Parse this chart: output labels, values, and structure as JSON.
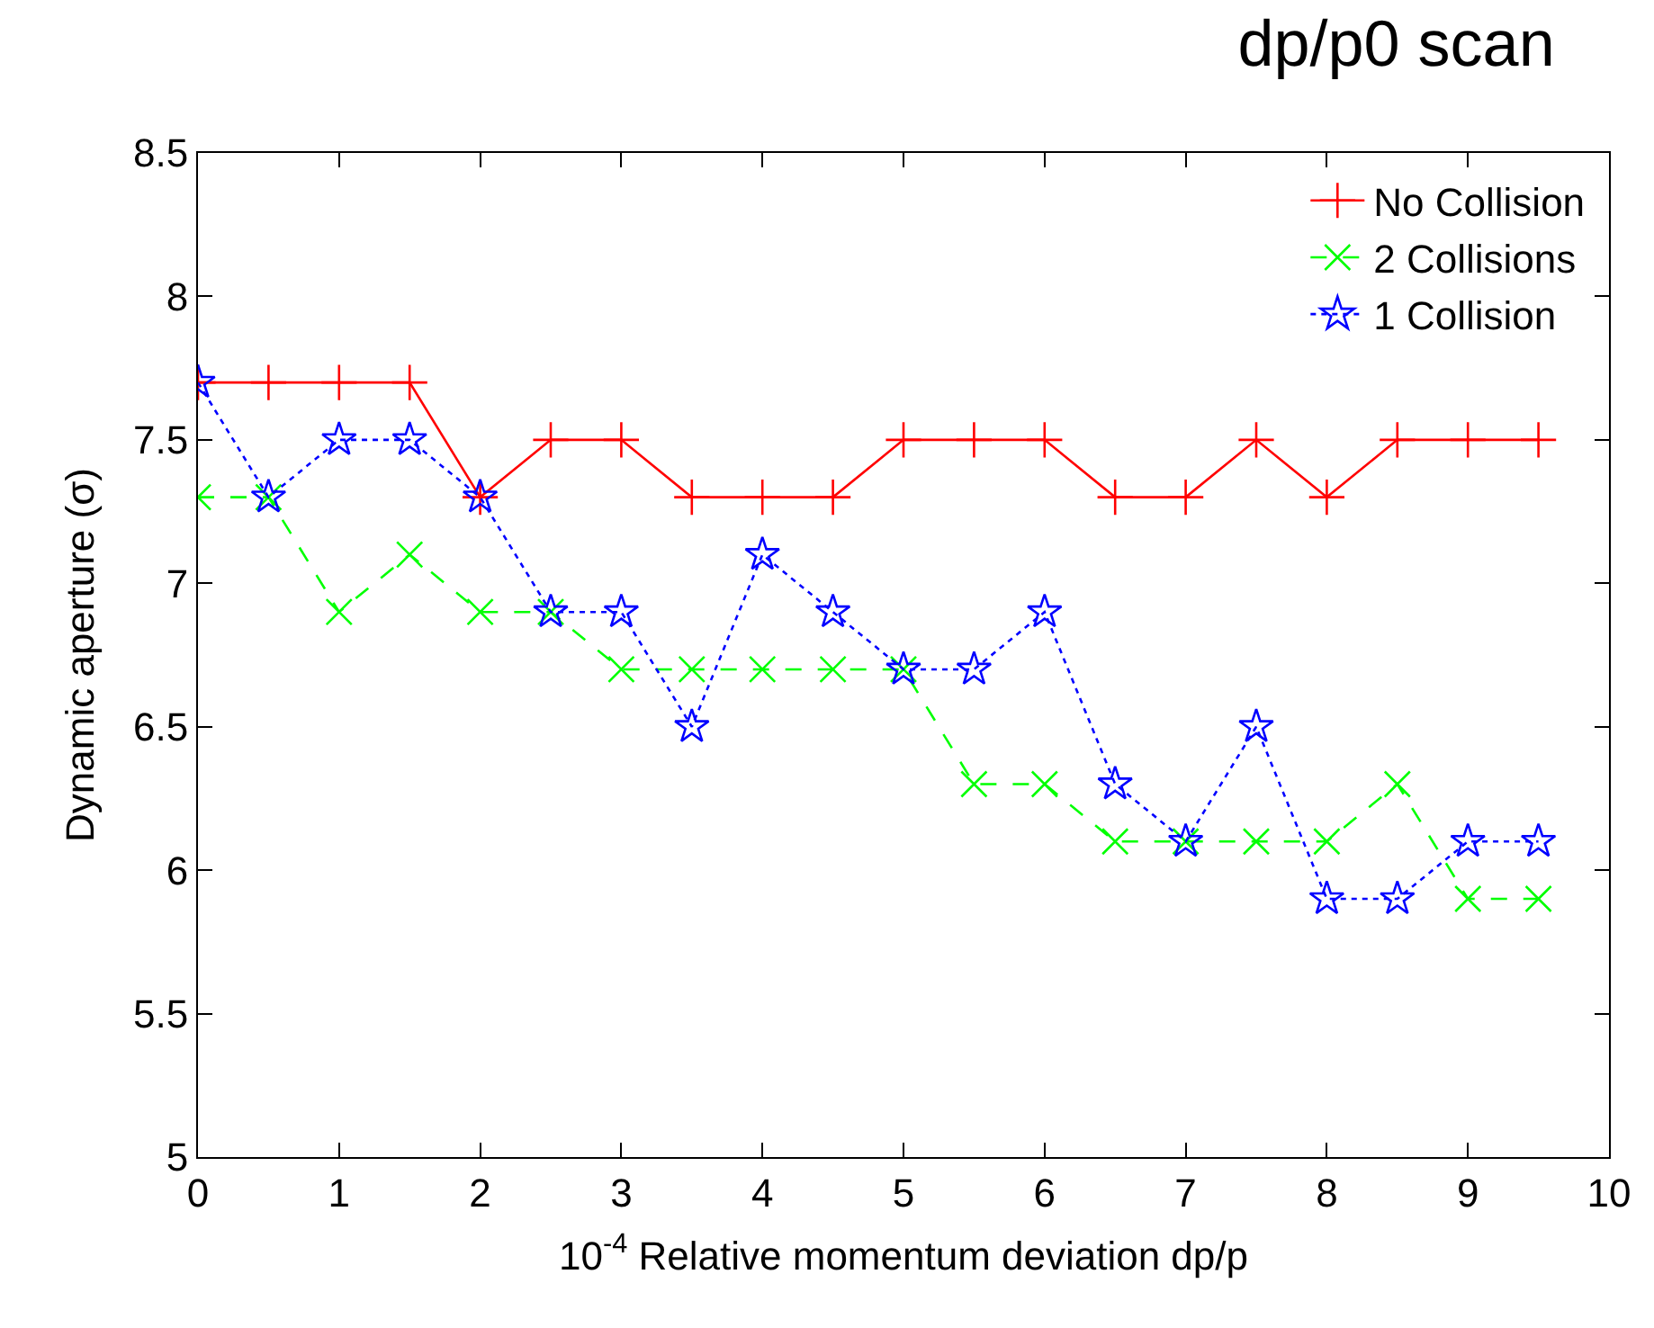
{
  "chart_data": {
    "type": "line",
    "title": "dp/p0 scan",
    "xlabel": "10$^{-4}$ Relative momentum deviation dp/p",
    "ylabel": "Dynamic aperture (σ)",
    "x": [
      0,
      0.5,
      1,
      1.5,
      2,
      2.5,
      3,
      3.5,
      4,
      4.5,
      5,
      5.5,
      6,
      6.5,
      7,
      7.5,
      8,
      8.5,
      9,
      9.5
    ],
    "series": [
      {
        "name": "No Collision",
        "color": "#ff0000",
        "marker": "cross",
        "line_style": "solid",
        "values": [
          7.7,
          7.7,
          7.7,
          7.7,
          7.3,
          7.5,
          7.5,
          7.3,
          7.3,
          7.3,
          7.5,
          7.5,
          7.5,
          7.3,
          7.3,
          7.5,
          7.3,
          7.5,
          7.5,
          7.5
        ]
      },
      {
        "name": "2 Collisions",
        "color": "#00ff00",
        "marker": "x",
        "line_style": "dashed",
        "values": [
          7.3,
          7.3,
          6.9,
          7.1,
          6.9,
          6.9,
          6.7,
          6.7,
          6.7,
          6.7,
          6.7,
          6.3,
          6.3,
          6.1,
          6.1,
          6.1,
          6.1,
          6.3,
          5.9,
          5.9
        ]
      },
      {
        "name": "1 Collision",
        "color": "#0000ff",
        "marker": "star",
        "line_style": "dotted",
        "values": [
          7.7,
          7.3,
          7.5,
          7.5,
          7.3,
          6.9,
          6.9,
          6.5,
          7.1,
          6.9,
          6.7,
          6.7,
          6.9,
          6.3,
          6.1,
          6.5,
          5.9,
          5.9,
          6.1,
          6.1
        ]
      }
    ],
    "xlim": [
      0,
      10
    ],
    "xticks": [
      0,
      1,
      2,
      3,
      4,
      5,
      6,
      7,
      8,
      9,
      10
    ],
    "ylim": [
      5,
      8.5
    ],
    "yticks": [
      5,
      5.5,
      6,
      6.5,
      7,
      7.5,
      8,
      8.5
    ],
    "legend": "top right"
  }
}
